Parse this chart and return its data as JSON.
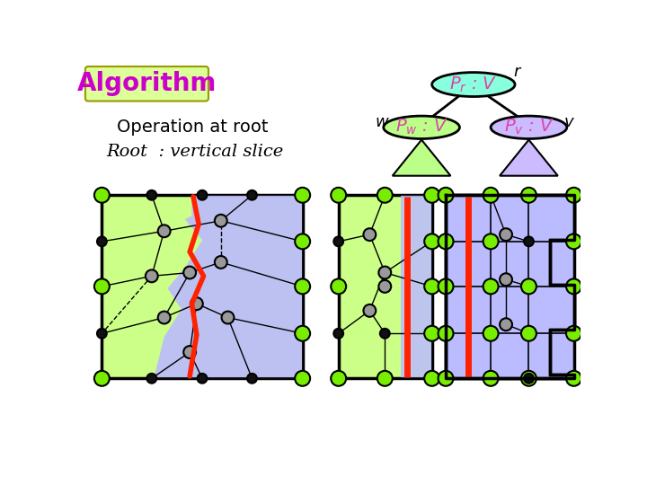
{
  "bg_color": "#ffffff",
  "title_text": "Algorithm",
  "title_bg": "#ddff99",
  "title_color": "#cc00cc",
  "op_text": "Operation at root",
  "root_text": "Root  : vertical slice",
  "ellipse_r_color": "#88ffdd",
  "ellipse_w_color": "#bbff88",
  "ellipse_v_color": "#ccbbff",
  "triangle_w_color": "#bbff88",
  "triangle_v_color": "#ccbbff",
  "node_green_color": "#77ee00",
  "node_gray_color": "#999999",
  "node_black_color": "#111111",
  "red_line_color": "#ff2200",
  "green_bg": "#ccff88",
  "blue_bg": "#bbbbff",
  "pink_text": "#dd44aa"
}
